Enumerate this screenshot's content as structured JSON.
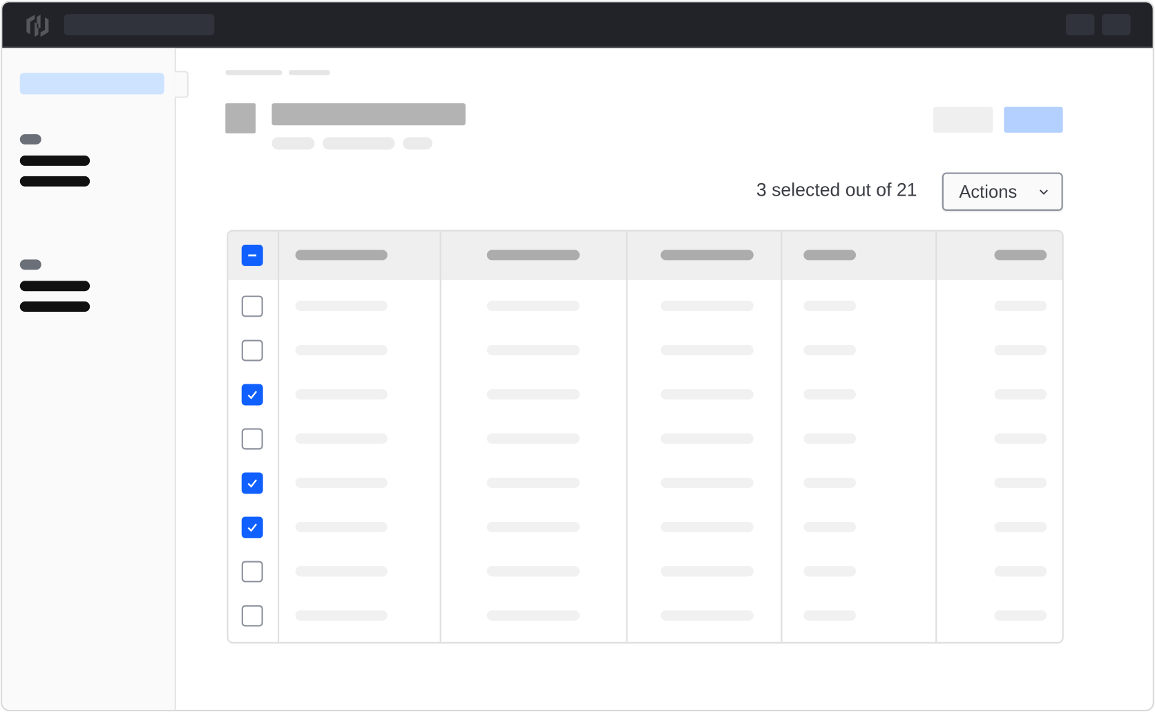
{
  "app": {
    "logo": "hashicorp-logo-icon"
  },
  "selection": {
    "text": "3 selected out of 21",
    "selected": 3,
    "total": 21
  },
  "actions_dropdown": {
    "label": "Actions",
    "icon": "chevron-down-icon"
  },
  "colors": {
    "accent": "#1060ff",
    "topbar": "#212328",
    "sidebar_active": "#cde3ff",
    "primary_button": "#b3d0ff"
  },
  "table": {
    "header_checkbox_state": "indeterminate",
    "rows": [
      {
        "checked": false
      },
      {
        "checked": false
      },
      {
        "checked": true
      },
      {
        "checked": false
      },
      {
        "checked": true
      },
      {
        "checked": true
      },
      {
        "checked": false
      },
      {
        "checked": false
      }
    ]
  }
}
